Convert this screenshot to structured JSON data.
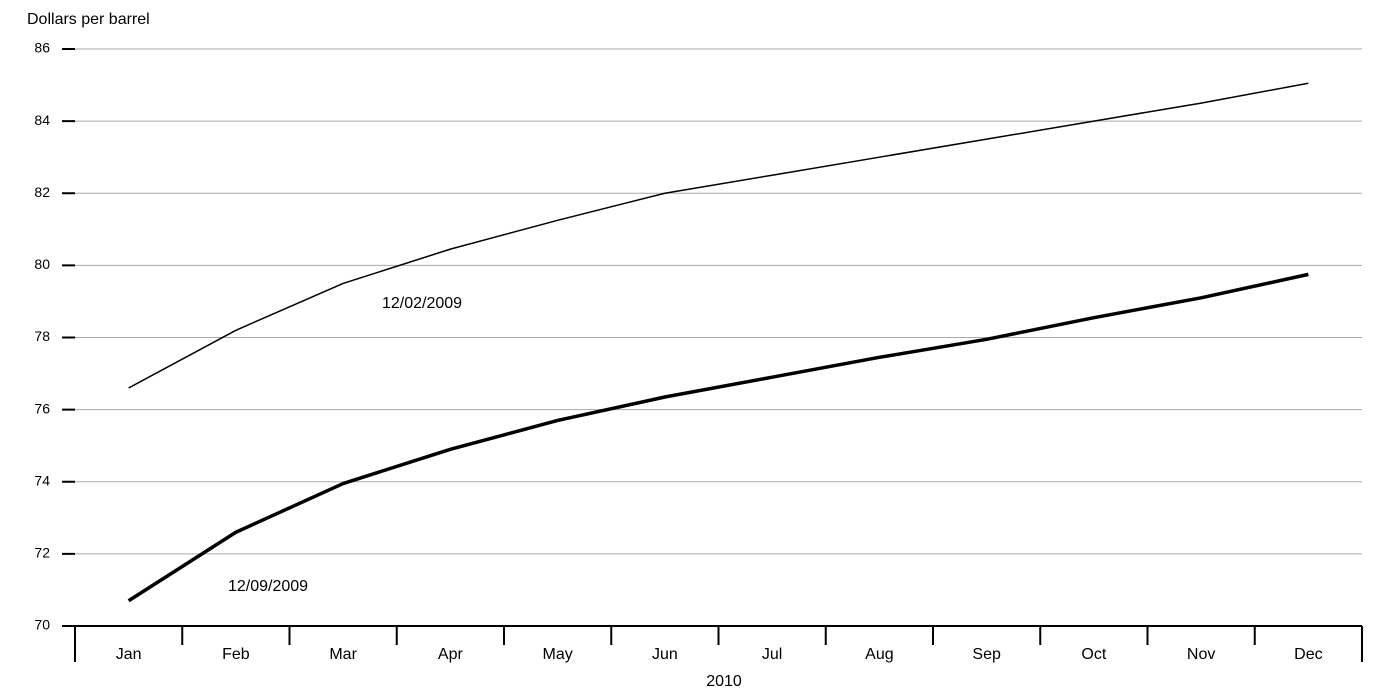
{
  "chart_data": {
    "type": "line",
    "y_label": "Dollars per barrel",
    "x_label": "2010",
    "categories": [
      "Jan",
      "Feb",
      "Mar",
      "Apr",
      "May",
      "Jun",
      "Jul",
      "Aug",
      "Sep",
      "Oct",
      "Nov",
      "Dec"
    ],
    "series": [
      {
        "name": "12/02/2009",
        "color": "#000000",
        "values": [
          76.6,
          78.2,
          79.5,
          80.45,
          81.25,
          82.0,
          82.5,
          83.0,
          83.5,
          84.0,
          84.5,
          85.05
        ]
      },
      {
        "name": "12/09/2009",
        "color": "#000000",
        "values": [
          70.7,
          72.6,
          73.95,
          74.9,
          75.7,
          76.35,
          76.9,
          77.45,
          77.95,
          78.55,
          79.1,
          79.75
        ]
      }
    ],
    "ylim": [
      70,
      86
    ],
    "yticks": [
      70,
      72,
      74,
      76,
      78,
      80,
      82,
      84,
      86
    ],
    "grid": true
  }
}
